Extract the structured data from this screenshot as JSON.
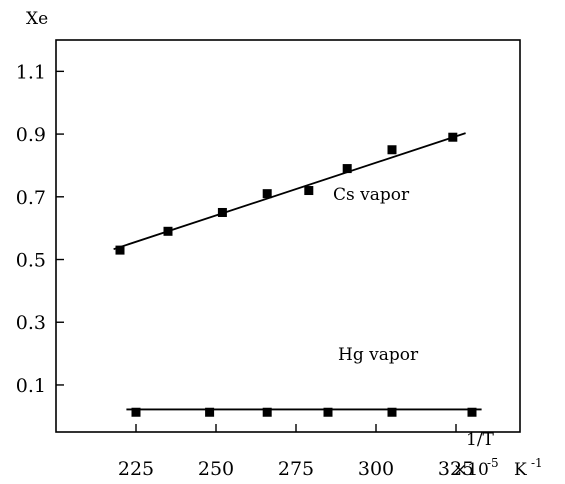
{
  "chart_data": {
    "type": "scatter",
    "ylabel": "Xe",
    "xlabel": "1/T",
    "x_unit_prefix": "×10",
    "x_unit_exponent": "-5",
    "x_unit_suffix": "K",
    "x_unit_suffix_exponent": "-1",
    "x_ticks": [
      {
        "value": 225,
        "label": "225"
      },
      {
        "value": 250,
        "label": "250"
      },
      {
        "value": 275,
        "label": "275"
      },
      {
        "value": 300,
        "label": "300"
      },
      {
        "value": 325,
        "label": "325"
      }
    ],
    "y_ticks": [
      {
        "value": 0.1,
        "label": "0.1"
      },
      {
        "value": 0.3,
        "label": "0.3"
      },
      {
        "value": 0.5,
        "label": "0.5"
      },
      {
        "value": 0.7,
        "label": "0.7"
      },
      {
        "value": 0.9,
        "label": "0.9"
      },
      {
        "value": 1.1,
        "label": "1.1"
      }
    ],
    "xlim": [
      200,
      345
    ],
    "ylim": [
      -0.05,
      1.2
    ],
    "grid": false,
    "series": [
      {
        "name": "Cs vapor",
        "points": [
          {
            "x": 220,
            "y": 0.53
          },
          {
            "x": 235,
            "y": 0.59
          },
          {
            "x": 252,
            "y": 0.65
          },
          {
            "x": 266,
            "y": 0.71
          },
          {
            "x": 279,
            "y": 0.72
          },
          {
            "x": 291,
            "y": 0.79
          },
          {
            "x": 305,
            "y": 0.85
          },
          {
            "x": 324,
            "y": 0.89
          }
        ],
        "fit": {
          "x": [
            218,
            328
          ],
          "y": [
            0.533,
            0.903
          ]
        }
      },
      {
        "name": "Hg vapor",
        "points": [
          {
            "x": 225,
            "y": 0.013
          },
          {
            "x": 248,
            "y": 0.013
          },
          {
            "x": 266,
            "y": 0.013
          },
          {
            "x": 285,
            "y": 0.013
          },
          {
            "x": 305,
            "y": 0.013
          },
          {
            "x": 330,
            "y": 0.013
          }
        ],
        "fit": {
          "x": [
            222,
            333
          ],
          "y": [
            0.022,
            0.022
          ]
        }
      }
    ]
  }
}
